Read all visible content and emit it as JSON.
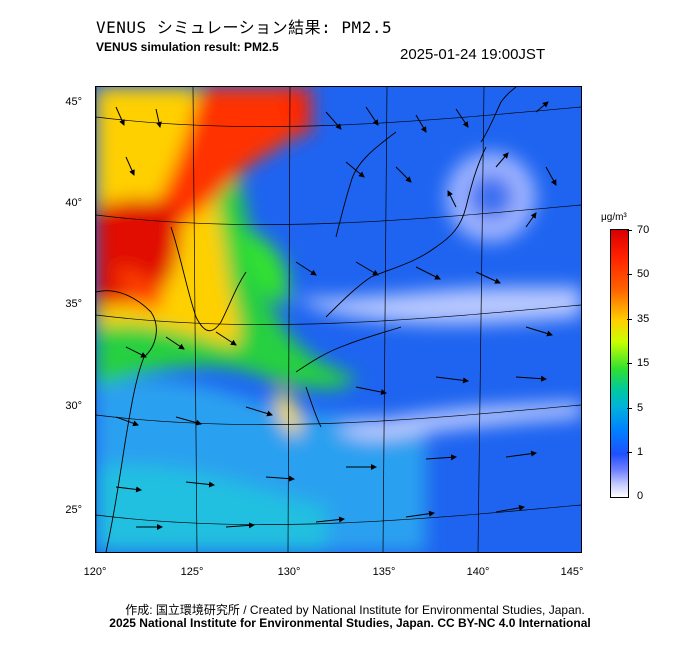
{
  "header": {
    "title_jp": "VENUS シミュレーション結果: PM2.5",
    "title_en": "VENUS simulation result: PM2.5",
    "timestamp": "2025-01-24 19:00JST"
  },
  "map": {
    "lat_labels": [
      "45°",
      "40°",
      "35°",
      "30°",
      "25°"
    ],
    "lon_labels": [
      "120°",
      "125°",
      "130°",
      "135°",
      "140°",
      "145°"
    ]
  },
  "colorbar": {
    "unit": "μg/m³",
    "ticks": [
      "70",
      "50",
      "35",
      "15",
      "5",
      "1",
      "0"
    ],
    "colors": {
      "high": "#d80000",
      "mid_high": "#ffd000",
      "mid": "#30e030",
      "low": "#0080ff",
      "lowest": "#ffffff"
    }
  },
  "footer": {
    "credit_line": "作成: 国立環境研究所 / Created by National Institute for Environmental Studies, Japan.",
    "copyright_line": "2025 National Institute for Environmental Studies, Japan. CC BY-NC 4.0 International"
  }
}
